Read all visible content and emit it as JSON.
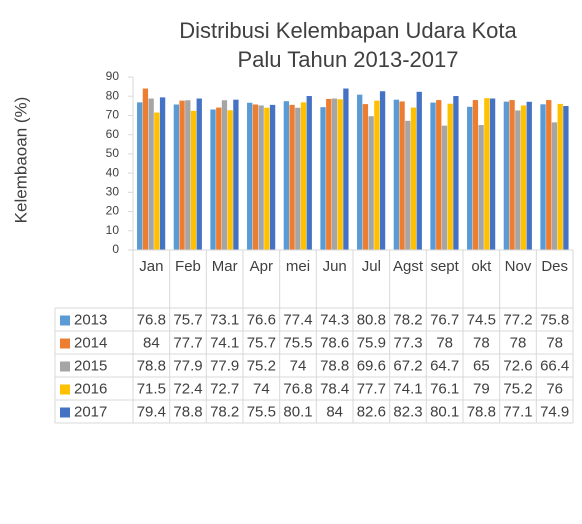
{
  "chart_data": {
    "type": "bar",
    "title": "Distribusi Kelembapan Udara Kota Palu Tahun 2013-2017",
    "y_label": "Kelembaoan (%)",
    "categories": [
      "Jan",
      "Feb",
      "Mar",
      "Apr",
      "mei",
      "Jun",
      "Jul",
      "Agst",
      "sept",
      "okt",
      "Nov",
      "Des"
    ],
    "series": [
      {
        "name": "2013",
        "color": "#5b9bd5",
        "values": [
          76.8,
          75.7,
          73.1,
          76.6,
          77.4,
          74.3,
          80.8,
          78.2,
          76.7,
          74.5,
          77.2,
          75.8
        ]
      },
      {
        "name": "2014",
        "color": "#ed7d31",
        "values": [
          84,
          77.7,
          74.1,
          75.7,
          75.5,
          78.6,
          75.9,
          77.3,
          78,
          78,
          78,
          78
        ]
      },
      {
        "name": "2015",
        "color": "#a5a5a5",
        "values": [
          78.8,
          77.9,
          77.9,
          75.2,
          74,
          78.8,
          69.6,
          67.2,
          64.7,
          65,
          72.6,
          66.4
        ]
      },
      {
        "name": "2016",
        "color": "#ffc000",
        "values": [
          71.5,
          72.4,
          72.7,
          74,
          76.8,
          78.4,
          77.7,
          74.1,
          76.1,
          79,
          75.2,
          76
        ]
      },
      {
        "name": "2017",
        "color": "#4472c4",
        "values": [
          79.4,
          78.8,
          78.2,
          75.5,
          80.1,
          84,
          82.6,
          82.3,
          80.1,
          78.8,
          77.1,
          74.9
        ]
      }
    ],
    "ylim": [
      0,
      90
    ],
    "yticks": [
      0,
      10,
      20,
      30,
      40,
      50,
      60,
      70,
      80,
      90
    ]
  }
}
